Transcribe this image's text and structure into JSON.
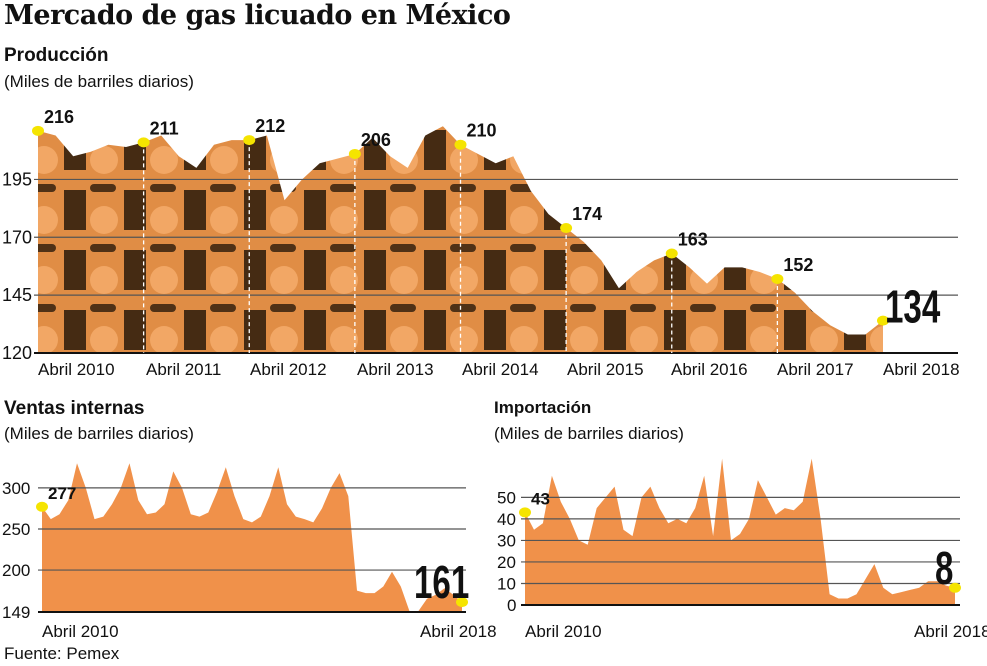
{
  "title": "Mercado de gas licuado en México",
  "source": "Fuente: Pemex",
  "colors": {
    "fill": "#f0914a",
    "dark": "#1a1206",
    "marker": "#f5e400",
    "grid": "#555555"
  },
  "chart_data": [
    {
      "type": "area",
      "title": "Producción",
      "ylabel": "(Miles de barriles diarios)",
      "x_start": "Abril 2010",
      "x_end": "Abril 2018",
      "x_step_months": 2,
      "ylim": [
        120,
        225
      ],
      "yticks": [
        120,
        145,
        170,
        195
      ],
      "xtick_labels": [
        "Abril 2010",
        "Abril 2011",
        "Abril 2012",
        "Abril 2013",
        "Abril 2014",
        "Abril 2015",
        "Abril 2016",
        "Abril 2017",
        "Abril 2018"
      ],
      "values": [
        216,
        214,
        205,
        207,
        210,
        209,
        211,
        214,
        205,
        200,
        210,
        212,
        212,
        214,
        186,
        195,
        202,
        204,
        206,
        213,
        205,
        200,
        214,
        218,
        210,
        206,
        202,
        205,
        190,
        180,
        174,
        168,
        160,
        148,
        155,
        160,
        163,
        157,
        150,
        157,
        157,
        155,
        152,
        146,
        138,
        132,
        128,
        128,
        134
      ],
      "annotations": [
        {
          "x": "Abril 2010",
          "value": "216"
        },
        {
          "x": "Abril 2011",
          "value": "211"
        },
        {
          "x": "Abril 2012",
          "value": "212"
        },
        {
          "x": "Abril 2013",
          "value": "206"
        },
        {
          "x": "Abril 2014",
          "value": "210"
        },
        {
          "x": "Abril 2015",
          "value": "174"
        },
        {
          "x": "Abril 2016",
          "value": "163"
        },
        {
          "x": "Abril 2017",
          "value": "152"
        },
        {
          "x": "Abril 2018",
          "value": "134"
        }
      ]
    },
    {
      "type": "area",
      "title": "Ventas internas",
      "ylabel": "(Miles de barriles diarios)",
      "x_start": "Abril 2010",
      "x_end": "Abril 2018",
      "x_step_months": 2,
      "ylim": [
        149,
        340
      ],
      "yticks": [
        149,
        200,
        250,
        300
      ],
      "xtick_labels": [
        "Abril 2010",
        "Abril 2018"
      ],
      "values": [
        277,
        262,
        268,
        285,
        330,
        300,
        262,
        265,
        280,
        300,
        330,
        285,
        268,
        270,
        280,
        320,
        300,
        268,
        265,
        270,
        295,
        325,
        290,
        262,
        258,
        265,
        290,
        325,
        280,
        265,
        262,
        258,
        275,
        300,
        318,
        290,
        175,
        172,
        172,
        180,
        198,
        180,
        150,
        150,
        165,
        170,
        178,
        170,
        161
      ],
      "annotations": [
        {
          "x": "Abril 2010",
          "value": "277"
        },
        {
          "x": "Abril 2018",
          "value": "161"
        }
      ]
    },
    {
      "type": "area",
      "title": "Importación",
      "ylabel": "(Miles de barriles diarios)",
      "x_start": "Abril 2010",
      "x_end": "Abril 2018",
      "x_step_months": 2,
      "ylim": [
        0,
        72
      ],
      "yticks": [
        0,
        10,
        20,
        30,
        40,
        50
      ],
      "xtick_labels": [
        "Abril 2010",
        "Abril 2018"
      ],
      "values": [
        43,
        35,
        38,
        60,
        48,
        40,
        30,
        28,
        45,
        50,
        55,
        35,
        32,
        50,
        55,
        45,
        38,
        40,
        38,
        45,
        60,
        32,
        68,
        30,
        33,
        40,
        58,
        50,
        42,
        45,
        44,
        48,
        68,
        40,
        5,
        3,
        3,
        5,
        12,
        19,
        8,
        5,
        6,
        7,
        8,
        11,
        11,
        9,
        8
      ],
      "annotations": [
        {
          "x": "Abril 2010",
          "value": "43"
        },
        {
          "x": "Abril 2018",
          "value": "8"
        }
      ]
    }
  ]
}
